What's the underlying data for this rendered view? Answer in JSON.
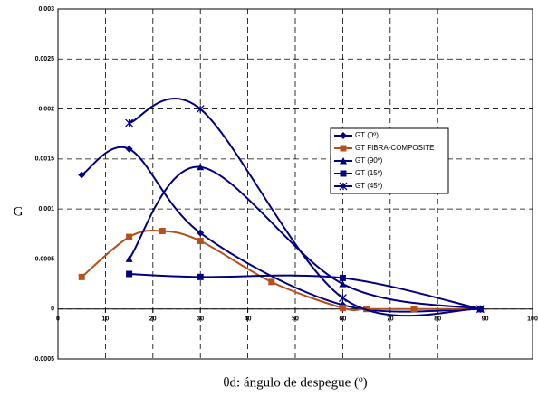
{
  "chart_data": {
    "type": "line",
    "x_label": "θd: ángulo de despegue (º)",
    "y_label": "G",
    "xlim": [
      0,
      100
    ],
    "xticks": [
      0,
      10,
      20,
      30,
      40,
      50,
      60,
      70,
      80,
      90,
      100
    ],
    "ylim": [
      -0.0005,
      0.003
    ],
    "yticks": [
      -0.0005,
      0,
      0.0005,
      0.001,
      0.0015,
      0.002,
      0.0025,
      0.003
    ],
    "grid": true,
    "smooth": true,
    "series": [
      {
        "name": "GT (0º)",
        "color": "#000080",
        "marker": "diamond",
        "x": [
          5,
          15,
          30,
          60,
          89
        ],
        "values": [
          0.00134,
          0.0016,
          0.00076,
          4e-05,
          0
        ]
      },
      {
        "name": "GT FIBRA-COMPOSITE",
        "color": "#b5501c",
        "marker": "square",
        "x": [
          5,
          15,
          22,
          30,
          45,
          60,
          65,
          75,
          89
        ],
        "values": [
          0.00032,
          0.00072,
          0.00078,
          0.00068,
          0.00027,
          1e-05,
          0,
          0,
          0
        ]
      },
      {
        "name": "GT (90º)",
        "color": "#000080",
        "marker": "triangle",
        "x": [
          15,
          30,
          60,
          89
        ],
        "values": [
          0.0005,
          0.00142,
          0.00025,
          0
        ]
      },
      {
        "name": "GT (15º)",
        "color": "#000080",
        "marker": "square",
        "x": [
          15,
          30,
          60,
          89
        ],
        "values": [
          0.00035,
          0.00032,
          0.00031,
          0
        ]
      },
      {
        "name": "GT (45º)",
        "color": "#000080",
        "marker": "star",
        "x": [
          15,
          30,
          60,
          89
        ],
        "values": [
          0.00186,
          0.002,
          0.00011,
          0
        ]
      }
    ]
  }
}
